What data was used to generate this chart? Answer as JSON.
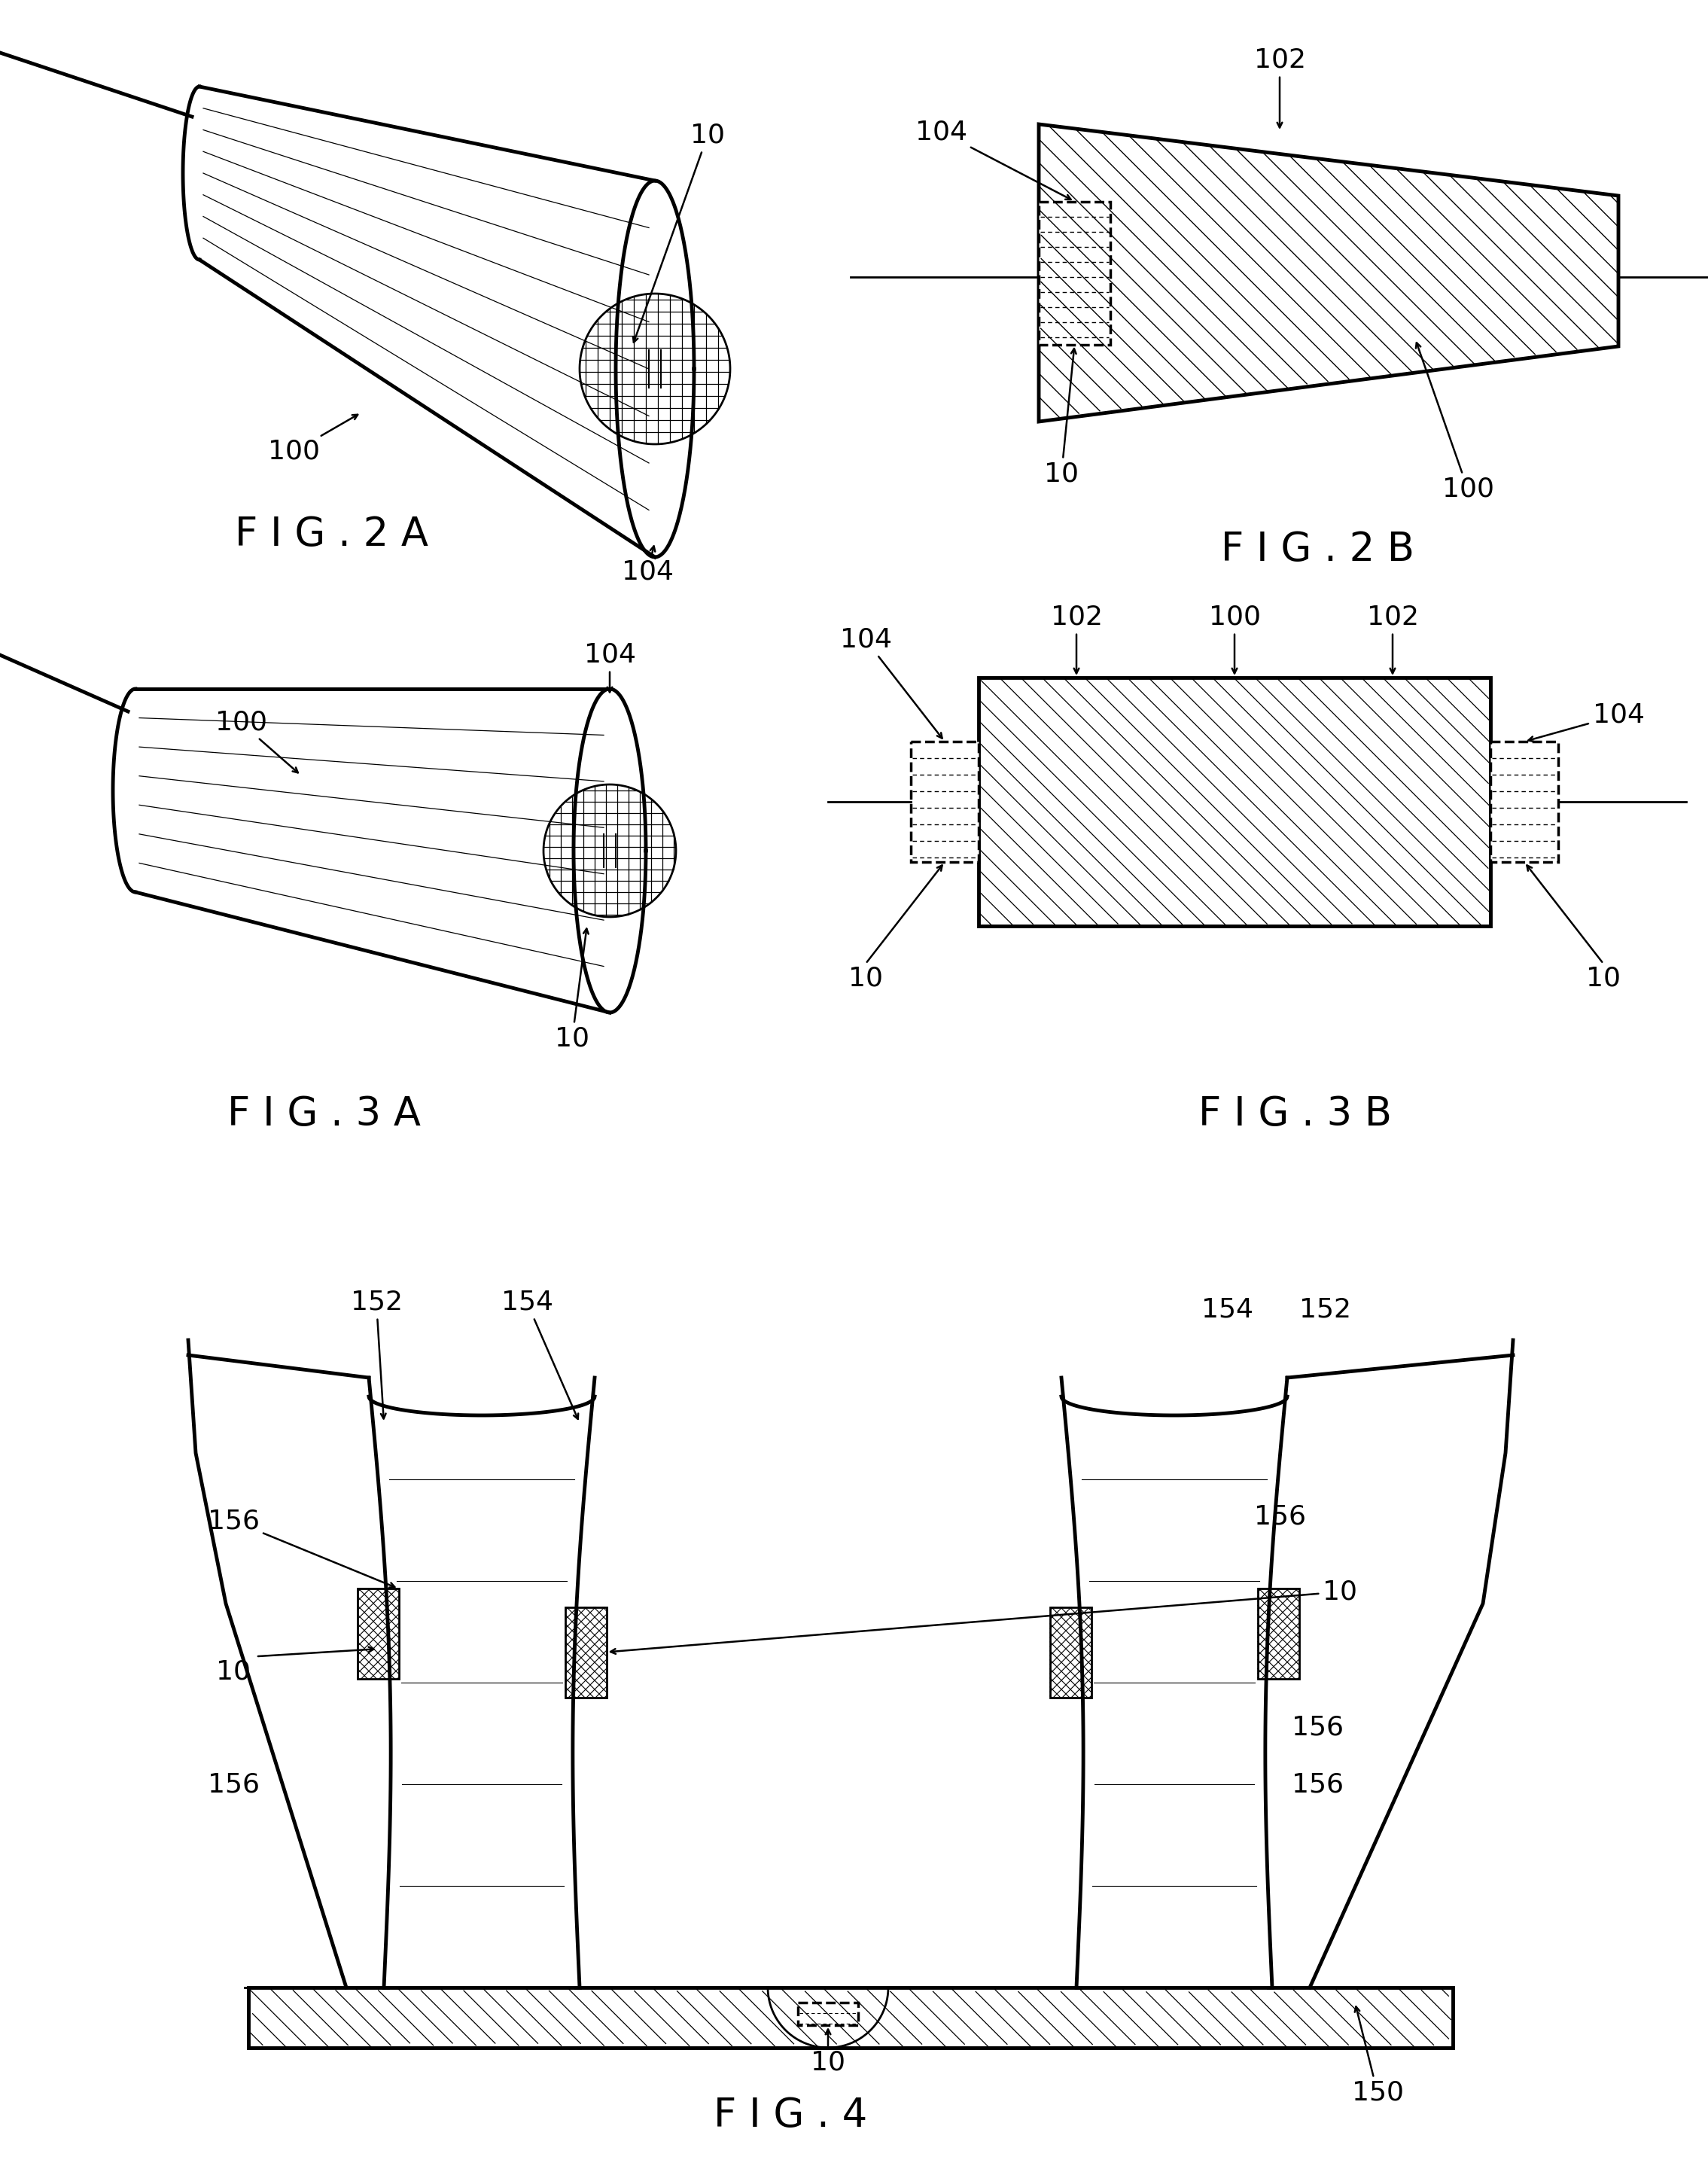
{
  "bg_color": "#ffffff",
  "line_color": "#000000",
  "fig_width": 22.69,
  "fig_height": 28.97,
  "fig2a_label": "F I G . 2 A",
  "fig2b_label": "F I G . 2 B",
  "fig3a_label": "F I G . 3 A",
  "fig3b_label": "F I G . 3 B",
  "fig4_label": "F I G . 4",
  "label_fontsize": 38,
  "ref_fontsize": 26,
  "lw": 2.0,
  "lw_thick": 3.5,
  "lw_medium": 2.5
}
